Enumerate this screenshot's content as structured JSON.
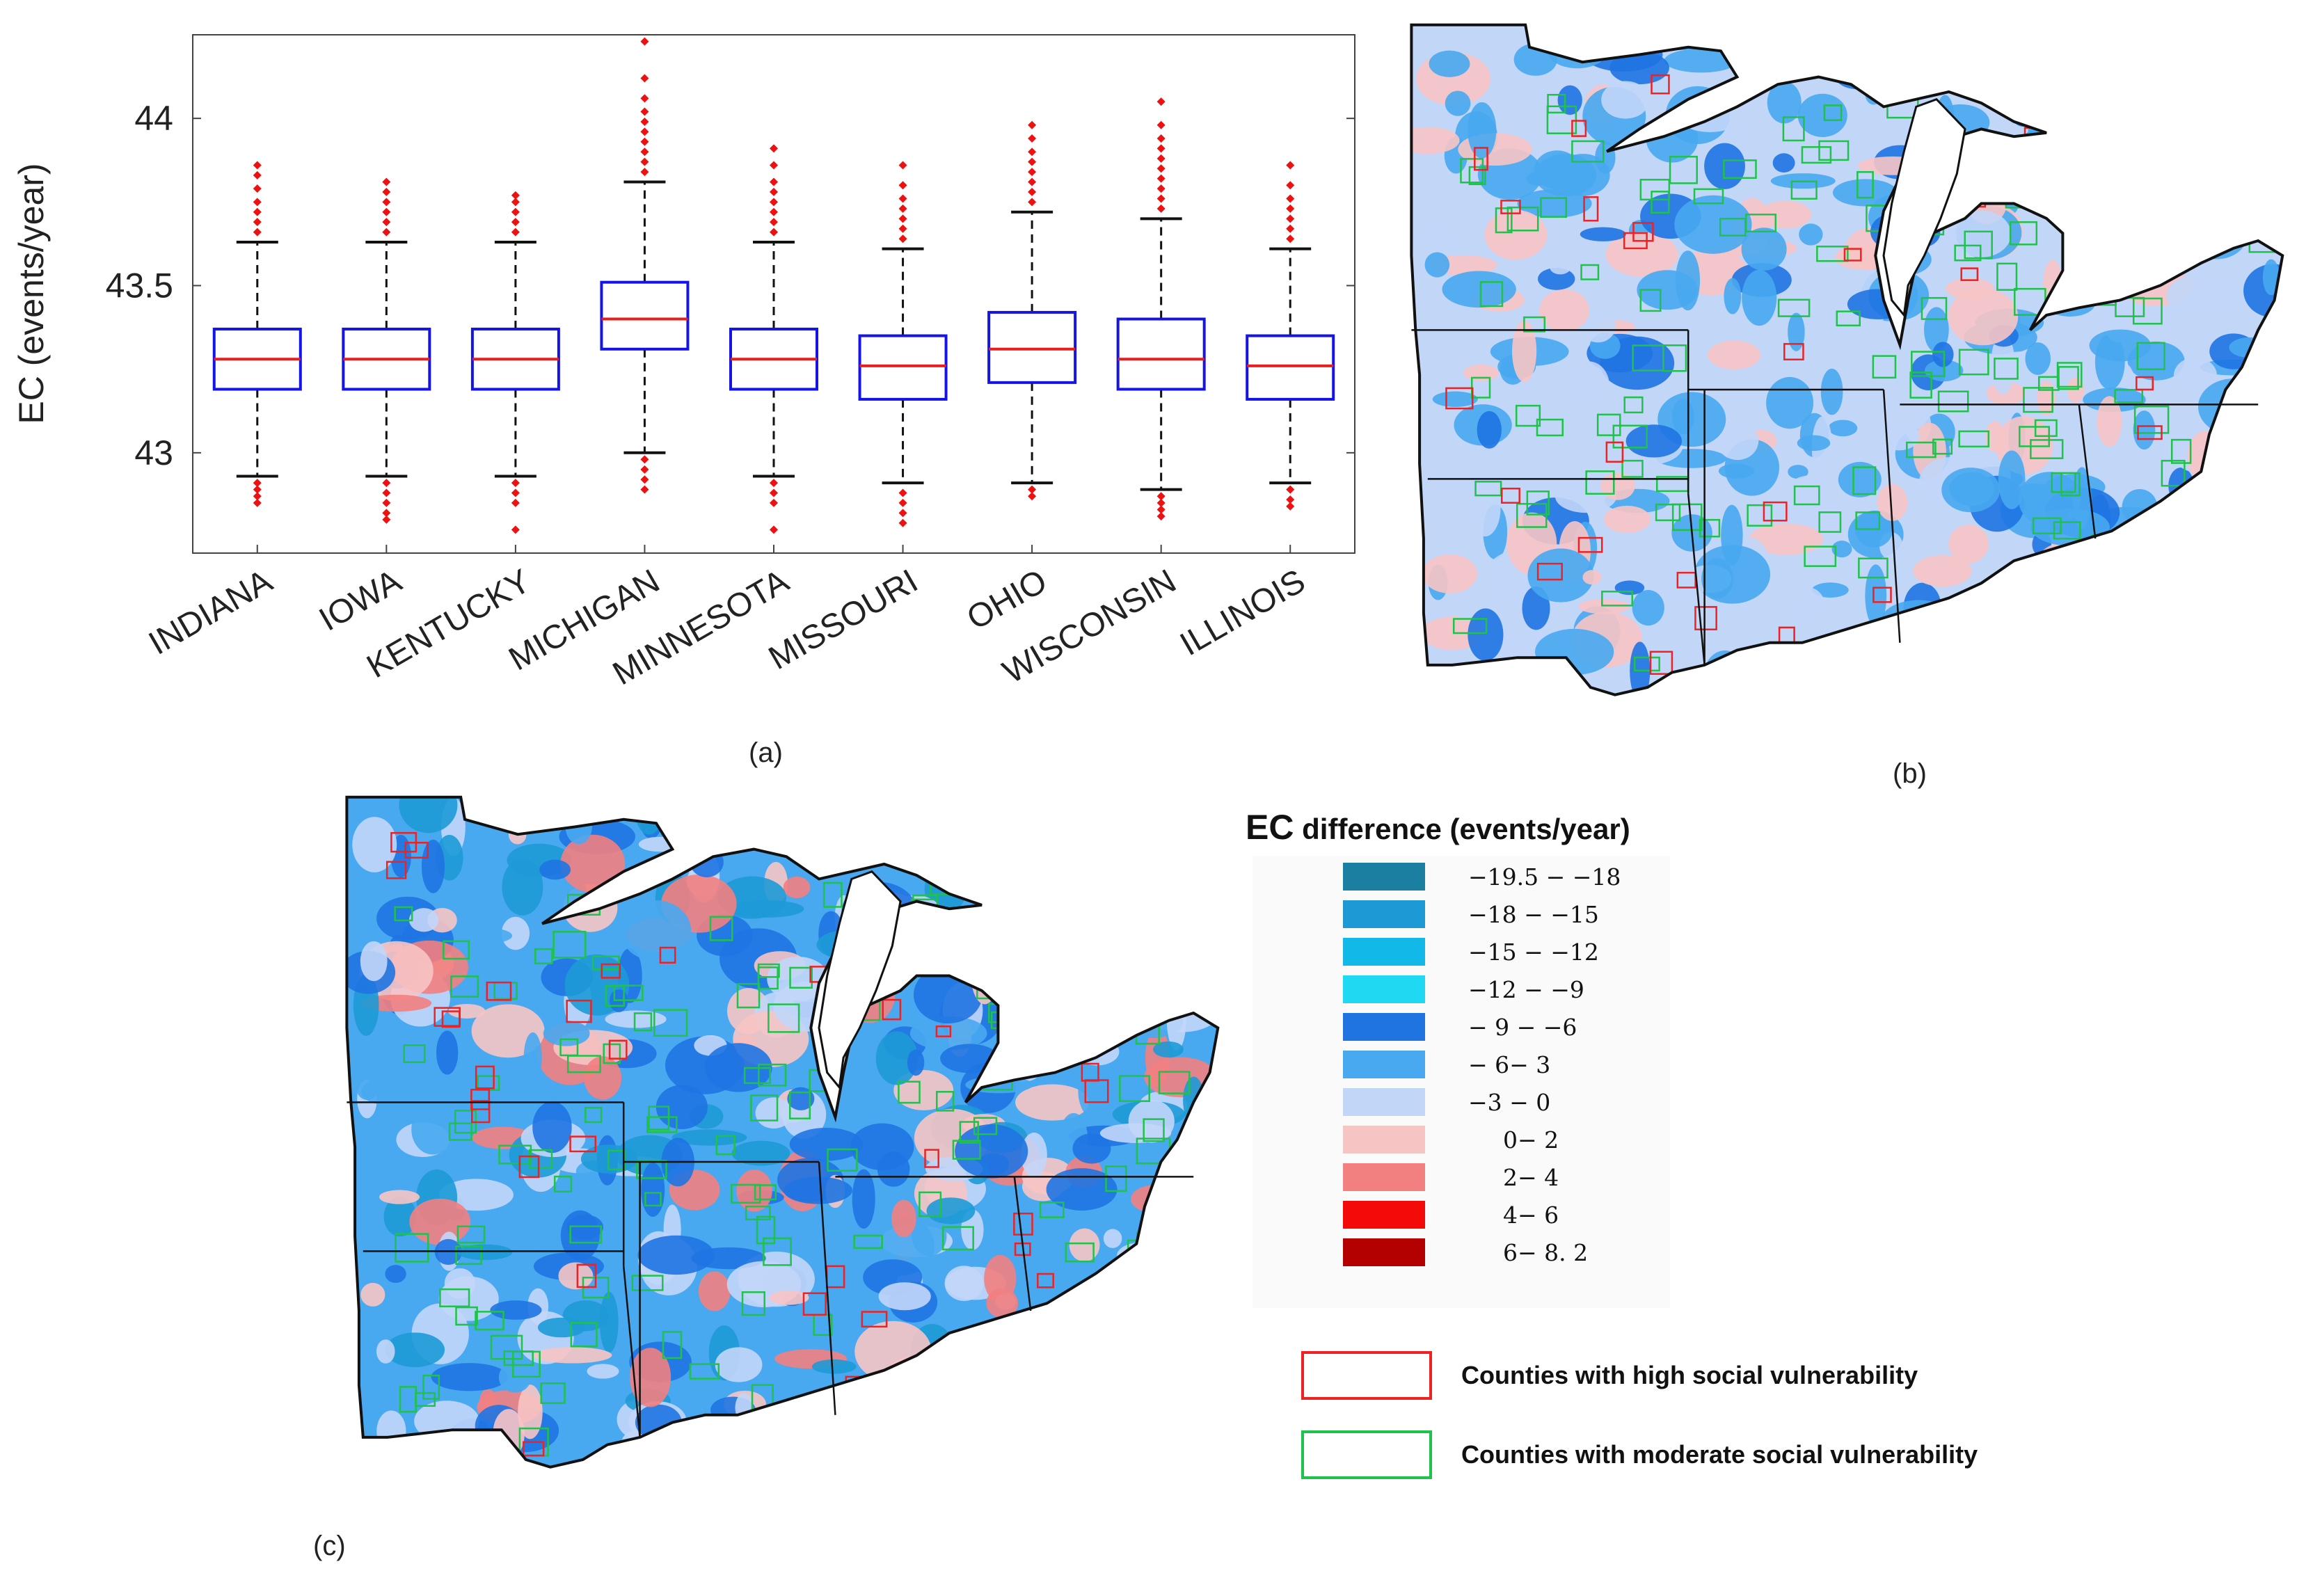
{
  "chart_data": [
    {
      "type": "boxplot",
      "panel": "(a)",
      "ylabel": "EC (events/year)",
      "xlabel": "",
      "ylim": [
        42.7,
        44.25
      ],
      "yticks": [
        43,
        43.5,
        44
      ],
      "grid": false,
      "categories": [
        "INDIANA",
        "IOWA",
        "KENTUCKY",
        "MICHIGAN",
        "MINNESOTA",
        "MISSOURI",
        "OHIO",
        "WISCONSIN",
        "ILLINOIS"
      ],
      "series": [
        {
          "name": "INDIANA",
          "q1": 43.19,
          "median": 43.28,
          "q3": 43.37,
          "whisker_low": 42.93,
          "whisker_high": 43.63,
          "outliers_low": [
            42.91,
            42.89,
            42.87,
            42.85
          ],
          "outliers_high": [
            43.66,
            43.69,
            43.72,
            43.75,
            43.79,
            43.83,
            43.86
          ]
        },
        {
          "name": "IOWA",
          "q1": 43.19,
          "median": 43.28,
          "q3": 43.37,
          "whisker_low": 42.93,
          "whisker_high": 43.63,
          "outliers_low": [
            42.91,
            42.88,
            42.85,
            42.82,
            42.8
          ],
          "outliers_high": [
            43.66,
            43.69,
            43.72,
            43.75,
            43.78,
            43.81
          ]
        },
        {
          "name": "KENTUCKY",
          "q1": 43.19,
          "median": 43.28,
          "q3": 43.37,
          "whisker_low": 42.93,
          "whisker_high": 43.63,
          "outliers_low": [
            42.91,
            42.88,
            42.85,
            42.77
          ],
          "outliers_high": [
            43.66,
            43.69,
            43.72,
            43.75,
            43.77
          ]
        },
        {
          "name": "MICHIGAN",
          "q1": 43.31,
          "median": 43.4,
          "q3": 43.51,
          "whisker_low": 43.0,
          "whisker_high": 43.81,
          "outliers_low": [
            42.98,
            42.95,
            42.92,
            42.89
          ],
          "outliers_high": [
            43.84,
            43.87,
            43.9,
            43.93,
            43.96,
            43.99,
            44.02,
            44.06,
            44.12,
            44.23
          ]
        },
        {
          "name": "MINNESOTA",
          "q1": 43.19,
          "median": 43.28,
          "q3": 43.37,
          "whisker_low": 42.93,
          "whisker_high": 43.63,
          "outliers_low": [
            42.91,
            42.88,
            42.85,
            42.77
          ],
          "outliers_high": [
            43.66,
            43.69,
            43.72,
            43.75,
            43.78,
            43.81,
            43.86,
            43.91
          ]
        },
        {
          "name": "MISSOURI",
          "q1": 43.16,
          "median": 43.26,
          "q3": 43.35,
          "whisker_low": 42.91,
          "whisker_high": 43.61,
          "outliers_low": [
            42.88,
            42.85,
            42.82,
            42.79
          ],
          "outliers_high": [
            43.64,
            43.67,
            43.7,
            43.73,
            43.76,
            43.8,
            43.86
          ]
        },
        {
          "name": "OHIO",
          "q1": 43.21,
          "median": 43.31,
          "q3": 43.42,
          "whisker_low": 42.91,
          "whisker_high": 43.72,
          "outliers_low": [
            42.89,
            42.87
          ],
          "outliers_high": [
            43.75,
            43.78,
            43.81,
            43.84,
            43.87,
            43.9,
            43.94,
            43.98
          ]
        },
        {
          "name": "WISCONSIN",
          "q1": 43.19,
          "median": 43.28,
          "q3": 43.4,
          "whisker_low": 42.89,
          "whisker_high": 43.7,
          "outliers_low": [
            42.87,
            42.85,
            42.83,
            42.81
          ],
          "outliers_high": [
            43.73,
            43.76,
            43.79,
            43.82,
            43.85,
            43.88,
            43.91,
            43.94,
            43.98,
            44.05
          ]
        },
        {
          "name": "ILLINOIS",
          "q1": 43.16,
          "median": 43.26,
          "q3": 43.35,
          "whisker_low": 42.91,
          "whisker_high": 43.61,
          "outliers_low": [
            42.89,
            42.86,
            42.84
          ],
          "outliers_high": [
            43.64,
            43.67,
            43.7,
            43.73,
            43.76,
            43.8,
            43.86
          ]
        }
      ],
      "colors": {
        "box": "#1414e6",
        "median": "#e62020",
        "whisker": "#111111",
        "outlier": "#ee1111"
      }
    },
    {
      "type": "map",
      "panel": "(b)",
      "description_regions": "Upper Midwest choropleth of EC difference"
    },
    {
      "type": "map",
      "panel": "(c)",
      "description_regions": "Upper Midwest choropleth of EC difference"
    }
  ],
  "captions": {
    "a": "(a)",
    "b": "(b)",
    "c": "(c)"
  },
  "legend": {
    "title_prefix": "EC",
    "title_rest": " difference (events/year)",
    "bins": [
      {
        "label": "−19.5 − −18",
        "color": "#1a7fa0"
      },
      {
        "label": "−18 − −15",
        "color": "#1d9ad6"
      },
      {
        "label": "−15 − −12",
        "color": "#12b8e8"
      },
      {
        "label": "−12 − −9",
        "color": "#1fd8f2"
      },
      {
        "label": "− 9 − −6",
        "color": "#1f74e2"
      },
      {
        "label": "− 6− 3",
        "color": "#48a8f0"
      },
      {
        "label": "−3 − 0",
        "color": "#c2d6f8"
      },
      {
        "label": "0− 2",
        "color": "#f7c4c4"
      },
      {
        "label": "2− 4",
        "color": "#f28080"
      },
      {
        "label": "4− 6",
        "color": "#f50a0a"
      },
      {
        "label": "6− 8. 2",
        "color": "#b30000"
      }
    ],
    "high_label": "Counties with high social vulnerability",
    "high_color": "#ee2222",
    "moderate_label": "Counties with moderate social vulnerability",
    "moderate_color": "#1fc24a"
  }
}
